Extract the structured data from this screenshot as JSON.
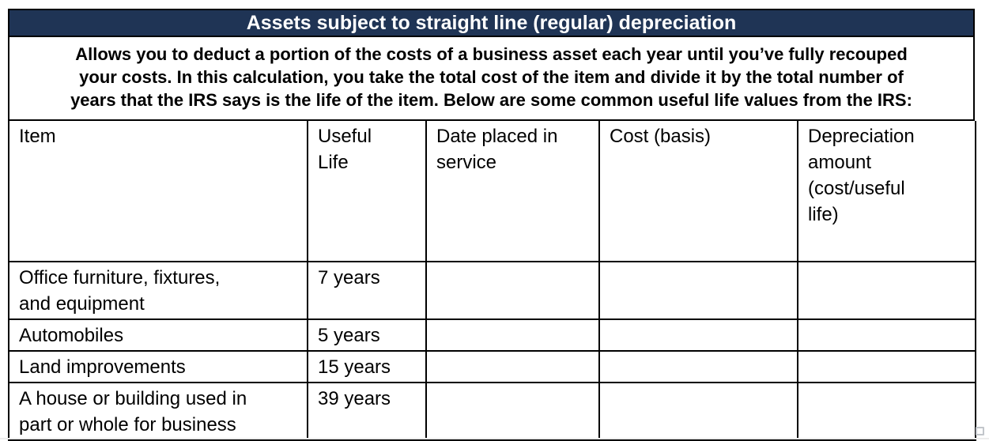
{
  "header": {
    "title": "Assets subject to straight line (regular) depreciation",
    "bg_color": "#1F3455",
    "text_color": "#FFFFFF"
  },
  "intro": {
    "text": "Allows you to deduct a portion of the costs of a business asset each year until you’ve fully recouped\nyour costs. In this calculation, you take the total cost of the item and divide it by the total number of\nyears that the IRS says is the life of the item. Below are some common useful life values from the IRS:"
  },
  "table": {
    "columns": [
      "Item",
      "Useful\nLife",
      "Date placed in\nservice",
      "Cost (basis)",
      "Depreciation\namount\n(cost/useful\nlife)"
    ],
    "rows": [
      {
        "item": "Office furniture, fixtures,\nand equipment",
        "useful_life": "7 years",
        "date_placed_in_service": "",
        "cost_basis": "",
        "depreciation_amount": ""
      },
      {
        "item": "Automobiles",
        "useful_life": "5 years",
        "date_placed_in_service": "",
        "cost_basis": "",
        "depreciation_amount": ""
      },
      {
        "item": "Land improvements",
        "useful_life": "15 years",
        "date_placed_in_service": "",
        "cost_basis": "",
        "depreciation_amount": ""
      },
      {
        "item": "A house or building used in\npart or whole for business",
        "useful_life": "39 years",
        "date_placed_in_service": "",
        "cost_basis": "",
        "depreciation_amount": ""
      }
    ]
  },
  "colors": {
    "border": "#000000",
    "page_bg": "#FFFFFF"
  }
}
